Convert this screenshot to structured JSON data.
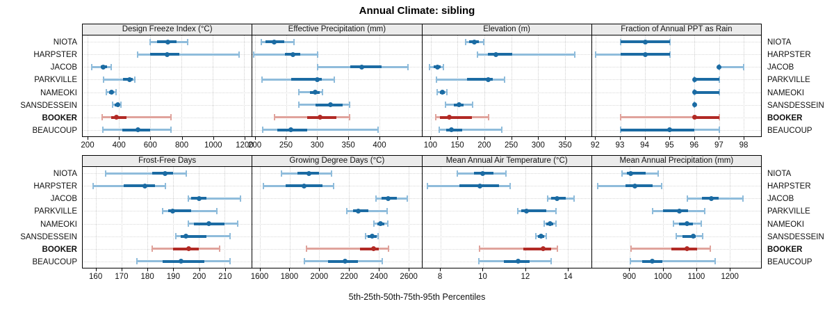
{
  "title": "Annual Climate: sibling",
  "caption": "5th-25th-50th-75th-95th Percentiles",
  "locations": [
    "NIOTA",
    "HARPSTER",
    "JACOB",
    "PARKVILLE",
    "NAMEOKI",
    "SANSDESSEIN",
    "BOOKER",
    "BEAUCOUP"
  ],
  "highlight_location": "BOOKER",
  "colors": {
    "series_blue_dark": "#1b6ba3",
    "series_blue_light": "#8fbcdb",
    "highlight_red_dark": "#b22a25",
    "highlight_red_light": "#e0a39c",
    "panel_header_bg": "#ebebeb",
    "gridline": "#cfcfcf",
    "border": "#000000"
  },
  "percentile_order": [
    "p5",
    "p25",
    "p50",
    "p75",
    "p95"
  ],
  "chart_data": [
    {
      "type": "scatter",
      "subtype": "dot-whisker-percentiles",
      "title": "Design Freeze Index (°C)",
      "grid": true,
      "axis": {
        "min": 169,
        "max": 1249,
        "ticks": [
          200,
          400,
          600,
          800,
          1000,
          1200
        ]
      },
      "series": [
        {
          "name": "NIOTA",
          "values": [
            600,
            645,
            712,
            770,
            838
          ]
        },
        {
          "name": "HARPSTER",
          "values": [
            520,
            598,
            707,
            785,
            1170
          ]
        },
        {
          "name": "JACOB",
          "values": [
            228,
            284,
            301,
            323,
            352
          ]
        },
        {
          "name": "PARKVILLE",
          "values": [
            300,
            428,
            468,
            488,
            500
          ]
        },
        {
          "name": "NAMEOKI",
          "values": [
            320,
            337,
            352,
            366,
            381
          ]
        },
        {
          "name": "SANSDESSEIN",
          "values": [
            358,
            372,
            391,
            402,
            414
          ]
        },
        {
          "name": "BOOKER",
          "values": [
            295,
            352,
            383,
            450,
            735
          ]
        },
        {
          "name": "BEAUCOUP",
          "values": [
            298,
            422,
            520,
            600,
            733
          ]
        }
      ]
    },
    {
      "type": "scatter",
      "subtype": "dot-whisker-percentiles",
      "title": "Effective Precipitation (mm)",
      "grid": true,
      "axis": {
        "min": 196,
        "max": 468,
        "ticks": [
          200,
          250,
          300,
          350,
          400
        ]
      },
      "series": [
        {
          "name": "NIOTA",
          "values": [
            210,
            217,
            231,
            247,
            263
          ]
        },
        {
          "name": "HARPSTER",
          "values": [
            198,
            248,
            261,
            273,
            301
          ]
        },
        {
          "name": "JACOB",
          "values": [
            301,
            353,
            372,
            404,
            446
          ]
        },
        {
          "name": "PARKVILLE",
          "values": [
            211,
            258,
            300,
            307,
            328
          ]
        },
        {
          "name": "NAMEOKI",
          "values": [
            271,
            288,
            297,
            304,
            309
          ]
        },
        {
          "name": "SANSDESSEIN",
          "values": [
            271,
            298,
            321,
            341,
            352
          ]
        },
        {
          "name": "BOOKER",
          "values": [
            231,
            284,
            305,
            331,
            352
          ]
        },
        {
          "name": "BEAUCOUP",
          "values": [
            213,
            236,
            258,
            284,
            398
          ]
        }
      ]
    },
    {
      "type": "scatter",
      "subtype": "dot-whisker-percentiles",
      "title": "Elevation (m)",
      "grid": true,
      "axis": {
        "min": 84,
        "max": 399,
        "ticks": [
          100,
          150,
          200,
          250,
          300,
          350
        ]
      },
      "series": [
        {
          "name": "NIOTA",
          "values": [
            165,
            172,
            181,
            189,
            198
          ]
        },
        {
          "name": "HARPSTER",
          "values": [
            187,
            206,
            221,
            252,
            368
          ]
        },
        {
          "name": "JACOB",
          "values": [
            98,
            106,
            112,
            118,
            123
          ]
        },
        {
          "name": "PARKVILLE",
          "values": [
            110,
            168,
            207,
            216,
            238
          ]
        },
        {
          "name": "NAMEOKI",
          "values": [
            112,
            117,
            121,
            126,
            130
          ]
        },
        {
          "name": "SANSDESSEIN",
          "values": [
            128,
            143,
            152,
            161,
            178
          ]
        },
        {
          "name": "BOOKER",
          "values": [
            109,
            117,
            134,
            176,
            208
          ]
        },
        {
          "name": "BEAUCOUP",
          "values": [
            116,
            129,
            139,
            158,
            232
          ]
        }
      ]
    },
    {
      "type": "scatter",
      "subtype": "dot-whisker-percentiles",
      "title": "Fraction of Annual PPT as Rain",
      "grid": true,
      "axis": {
        "min": 91.85,
        "max": 98.7,
        "ticks": [
          92,
          93,
          94,
          95,
          96,
          97,
          98
        ]
      },
      "series": [
        {
          "name": "NIOTA",
          "values": [
            93,
            93,
            94,
            95,
            95
          ]
        },
        {
          "name": "HARPSTER",
          "values": [
            92,
            93,
            94,
            95,
            95
          ]
        },
        {
          "name": "JACOB",
          "values": [
            97,
            97,
            97,
            97,
            98
          ]
        },
        {
          "name": "PARKVILLE",
          "values": [
            96,
            96,
            96,
            97,
            97
          ]
        },
        {
          "name": "NAMEOKI",
          "values": [
            96,
            96,
            96,
            97,
            97
          ]
        },
        {
          "name": "SANSDESSEIN",
          "values": [
            96,
            96,
            96,
            96,
            96
          ]
        },
        {
          "name": "BOOKER",
          "values": [
            93,
            96,
            96,
            97,
            97
          ]
        },
        {
          "name": "BEAUCOUP",
          "values": [
            93,
            93,
            95,
            96,
            97
          ]
        }
      ]
    },
    {
      "type": "scatter",
      "subtype": "dot-whisker-percentiles",
      "title": "Frost-Free Days",
      "grid": true,
      "axis": {
        "min": 155,
        "max": 220.5,
        "ticks": [
          160,
          170,
          180,
          190,
          200,
          210
        ]
      },
      "series": [
        {
          "name": "NIOTA",
          "values": [
            164,
            182,
            187,
            190,
            195
          ]
        },
        {
          "name": "HARPSTER",
          "values": [
            159,
            171,
            179,
            183,
            187
          ]
        },
        {
          "name": "JACOB",
          "values": [
            196,
            197,
            200,
            203,
            216
          ]
        },
        {
          "name": "PARKVILLE",
          "values": [
            186,
            188,
            190,
            197,
            207
          ]
        },
        {
          "name": "NAMEOKI",
          "values": [
            196,
            198,
            204,
            210,
            215
          ]
        },
        {
          "name": "SANSDESSEIN",
          "values": [
            191,
            193,
            195,
            203,
            212
          ]
        },
        {
          "name": "BOOKER",
          "values": [
            182,
            190,
            196,
            200,
            208
          ]
        },
        {
          "name": "BEAUCOUP",
          "values": [
            176,
            186,
            193,
            202,
            212
          ]
        }
      ]
    },
    {
      "type": "scatter",
      "subtype": "dot-whisker-percentiles",
      "title": "Growing Degree Days (°C)",
      "grid": true,
      "axis": {
        "min": 1551,
        "max": 2688,
        "ticks": [
          1600,
          1800,
          2000,
          2200,
          2400,
          2600
        ]
      },
      "series": [
        {
          "name": "NIOTA",
          "values": [
            1745,
            1855,
            1930,
            2000,
            2085
          ]
        },
        {
          "name": "HARPSTER",
          "values": [
            1625,
            1775,
            1900,
            2020,
            2095
          ]
        },
        {
          "name": "JACOB",
          "values": [
            2380,
            2420,
            2462,
            2520,
            2590
          ]
        },
        {
          "name": "PARKVILLE",
          "values": [
            2185,
            2228,
            2262,
            2330,
            2455
          ]
        },
        {
          "name": "NAMEOKI",
          "values": [
            2370,
            2392,
            2412,
            2438,
            2462
          ]
        },
        {
          "name": "SANSDESSEIN",
          "values": [
            2310,
            2328,
            2356,
            2386,
            2398
          ]
        },
        {
          "name": "BOOKER",
          "values": [
            1915,
            2272,
            2366,
            2402,
            2468
          ]
        },
        {
          "name": "BEAUCOUP",
          "values": [
            1900,
            2060,
            2176,
            2262,
            2422
          ]
        }
      ]
    },
    {
      "type": "scatter",
      "subtype": "dot-whisker-percentiles",
      "title": "Mean Annual Air Temperature (°C)",
      "grid": true,
      "axis": {
        "min": 7.15,
        "max": 15.1,
        "ticks": [
          8,
          10,
          12,
          14
        ]
      },
      "series": [
        {
          "name": "NIOTA",
          "values": [
            8.8,
            9.6,
            10.0,
            10.5,
            11.1
          ]
        },
        {
          "name": "HARPSTER",
          "values": [
            7.4,
            8.9,
            9.85,
            10.75,
            11.3
          ]
        },
        {
          "name": "JACOB",
          "values": [
            13.05,
            13.2,
            13.5,
            13.9,
            14.3
          ]
        },
        {
          "name": "PARKVILLE",
          "values": [
            11.65,
            11.8,
            12.05,
            13.0,
            13.45
          ]
        },
        {
          "name": "NAMEOKI",
          "values": [
            12.9,
            13.0,
            13.15,
            13.3,
            13.45
          ]
        },
        {
          "name": "SANSDESSEIN",
          "values": [
            12.5,
            12.6,
            12.75,
            12.9,
            13.0
          ]
        },
        {
          "name": "BOOKER",
          "values": [
            9.85,
            11.9,
            12.85,
            13.2,
            13.5
          ]
        },
        {
          "name": "BEAUCOUP",
          "values": [
            9.8,
            11.0,
            11.65,
            12.2,
            13.2
          ]
        }
      ]
    },
    {
      "type": "scatter",
      "subtype": "dot-whisker-percentiles",
      "title": "Mean Annual Precipitation (mm)",
      "grid": true,
      "axis": {
        "min": 787,
        "max": 1293,
        "ticks": [
          900,
          1000,
          1100,
          1200
        ]
      },
      "series": [
        {
          "name": "NIOTA",
          "values": [
            876,
            892,
            902,
            948,
            985
          ]
        },
        {
          "name": "HARPSTER",
          "values": [
            805,
            888,
            916,
            968,
            995
          ]
        },
        {
          "name": "JACOB",
          "values": [
            1073,
            1117,
            1145,
            1166,
            1238
          ]
        },
        {
          "name": "PARKVILLE",
          "values": [
            969,
            1000,
            1048,
            1075,
            1124
          ]
        },
        {
          "name": "NAMEOKI",
          "values": [
            1031,
            1048,
            1072,
            1090,
            1114
          ]
        },
        {
          "name": "SANSDESSEIN",
          "values": [
            1040,
            1058,
            1090,
            1098,
            1118
          ]
        },
        {
          "name": "BOOKER",
          "values": [
            905,
            1025,
            1072,
            1102,
            1142
          ]
        },
        {
          "name": "BEAUCOUP",
          "values": [
            902,
            938,
            968,
            998,
            1155
          ]
        }
      ]
    }
  ]
}
